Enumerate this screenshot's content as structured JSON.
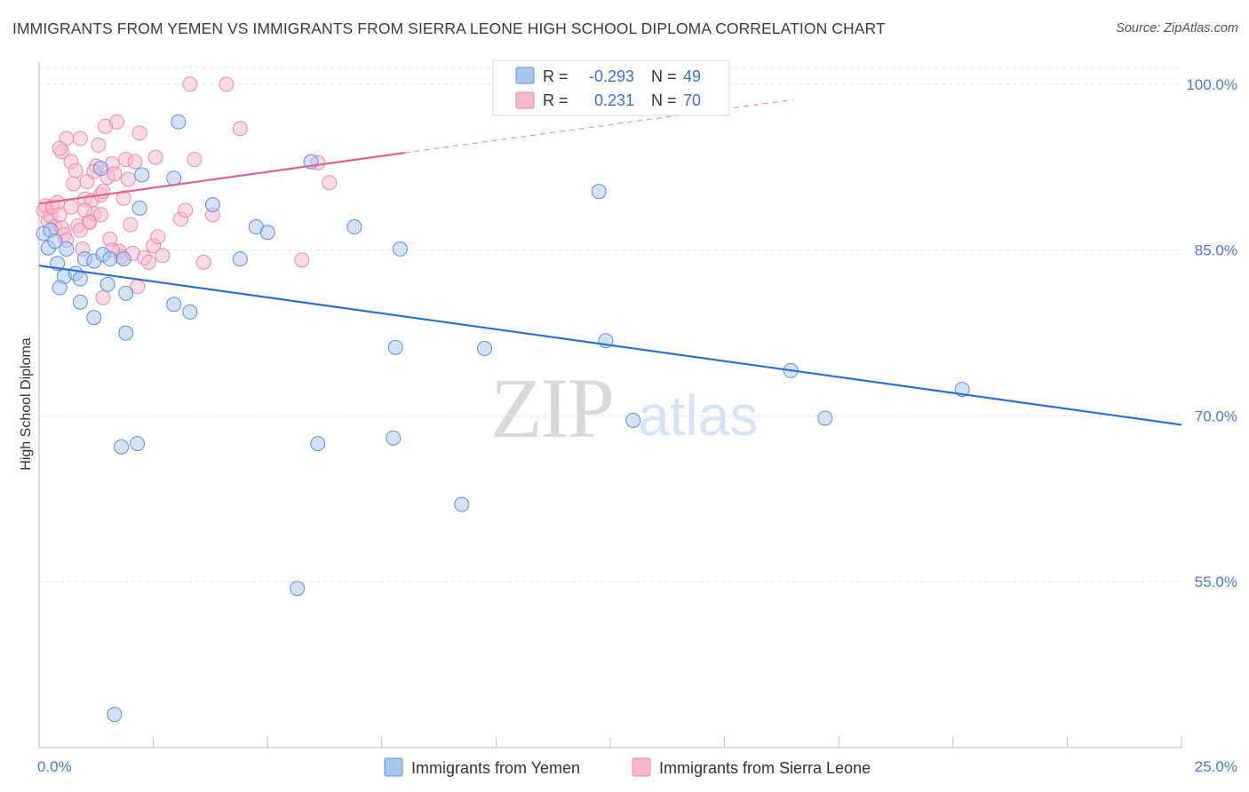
{
  "title": "IMMIGRANTS FROM YEMEN VS IMMIGRANTS FROM SIERRA LEONE HIGH SCHOOL DIPLOMA CORRELATION CHART",
  "source": "Source: ZipAtlas.com",
  "watermark": {
    "zip": "ZIP",
    "atlas": "atlas"
  },
  "colors": {
    "blue_fill": "#a9c6ef",
    "blue_stroke": "#5b8fd8",
    "blue_line": "#2d6fd0",
    "pink_fill": "#f6b8cc",
    "pink_stroke": "#e88aa8",
    "pink_line": "#e0628e"
  },
  "legend": {
    "rows": [
      {
        "r_label": "R =",
        "r_value": "-0.293",
        "n_label": "N =",
        "n_value": "49"
      },
      {
        "r_label": "R =",
        "r_value": "0.231",
        "n_label": "N =",
        "n_value": "70"
      }
    ]
  },
  "chart_data": {
    "type": "scatter",
    "title": "IMMIGRANTS FROM YEMEN VS IMMIGRANTS FROM SIERRA LEONE HIGH SCHOOL DIPLOMA CORRELATION CHART",
    "xlabel": "",
    "ylabel": "High School Diploma",
    "xlim": [
      0,
      25
    ],
    "ylim": [
      40,
      102
    ],
    "x_tick_labels": [
      "0.0%",
      "25.0%"
    ],
    "y_ticks": [
      55,
      70,
      85,
      100
    ],
    "y_tick_labels": [
      "55.0%",
      "70.0%",
      "85.0%",
      "100.0%"
    ],
    "grid": true,
    "series": [
      {
        "name": "Immigrants from Yemen",
        "color": "blue",
        "trend": {
          "x0": 0,
          "y0": 83.6,
          "x1": 25,
          "y1": 69.2
        },
        "points": [
          [
            0.1,
            86.5
          ],
          [
            0.25,
            86.8
          ],
          [
            0.2,
            85.2
          ],
          [
            0.35,
            85.8
          ],
          [
            0.6,
            85.1
          ],
          [
            0.4,
            83.8
          ],
          [
            0.55,
            82.6
          ],
          [
            0.8,
            82.9
          ],
          [
            1.0,
            84.2
          ],
          [
            1.2,
            84.0
          ],
          [
            0.45,
            81.6
          ],
          [
            0.9,
            82.4
          ],
          [
            1.4,
            84.6
          ],
          [
            1.55,
            84.2
          ],
          [
            1.85,
            84.2
          ],
          [
            1.35,
            92.4
          ],
          [
            0.9,
            80.3
          ],
          [
            1.2,
            78.9
          ],
          [
            1.5,
            81.9
          ],
          [
            1.9,
            81.1
          ],
          [
            1.9,
            77.5
          ],
          [
            2.2,
            88.8
          ],
          [
            2.25,
            91.8
          ],
          [
            2.95,
            91.5
          ],
          [
            3.05,
            96.6
          ],
          [
            2.95,
            80.1
          ],
          [
            3.3,
            79.4
          ],
          [
            3.8,
            89.1
          ],
          [
            4.4,
            84.2
          ],
          [
            4.75,
            87.1
          ],
          [
            5.0,
            86.6
          ],
          [
            5.95,
            93.0
          ],
          [
            6.9,
            87.1
          ],
          [
            7.9,
            85.1
          ],
          [
            7.8,
            76.2
          ],
          [
            9.75,
            76.1
          ],
          [
            12.25,
            90.3
          ],
          [
            12.4,
            76.8
          ],
          [
            16.45,
            74.1
          ],
          [
            20.2,
            72.4
          ],
          [
            13.0,
            69.6
          ],
          [
            17.2,
            69.8
          ],
          [
            1.8,
            67.2
          ],
          [
            2.15,
            67.5
          ],
          [
            6.1,
            67.5
          ],
          [
            7.75,
            68.0
          ],
          [
            9.25,
            62.0
          ],
          [
            5.65,
            54.4
          ],
          [
            1.65,
            43.0
          ]
        ]
      },
      {
        "name": "Immigrants from Sierra Leone",
        "color": "pink",
        "trend": {
          "x0": 0,
          "y0": 89.2,
          "x1": 8.0,
          "y1": 93.8,
          "dash_x1": 16.5,
          "dash_y1": 98.6
        },
        "points": [
          [
            0.1,
            88.6
          ],
          [
            0.15,
            89.0
          ],
          [
            0.2,
            87.6
          ],
          [
            0.25,
            88.1
          ],
          [
            0.3,
            88.9
          ],
          [
            0.35,
            87.1
          ],
          [
            0.4,
            89.3
          ],
          [
            0.45,
            88.2
          ],
          [
            0.5,
            87.0
          ],
          [
            0.55,
            86.4
          ],
          [
            0.6,
            85.9
          ],
          [
            0.7,
            88.9
          ],
          [
            0.75,
            91.0
          ],
          [
            0.85,
            87.2
          ],
          [
            0.9,
            86.8
          ],
          [
            0.95,
            85.1
          ],
          [
            1.0,
            89.6
          ],
          [
            1.05,
            91.2
          ],
          [
            1.1,
            87.6
          ],
          [
            1.15,
            89.5
          ],
          [
            1.2,
            88.3
          ],
          [
            1.25,
            92.6
          ],
          [
            1.3,
            94.5
          ],
          [
            1.35,
            90.0
          ],
          [
            1.4,
            90.3
          ],
          [
            1.45,
            96.2
          ],
          [
            1.5,
            91.6
          ],
          [
            1.55,
            86.0
          ],
          [
            1.6,
            92.8
          ],
          [
            1.65,
            91.9
          ],
          [
            1.7,
            96.6
          ],
          [
            1.75,
            84.9
          ],
          [
            1.8,
            84.4
          ],
          [
            1.85,
            89.7
          ],
          [
            1.9,
            93.2
          ],
          [
            2.0,
            87.3
          ],
          [
            2.05,
            84.7
          ],
          [
            2.1,
            93.0
          ],
          [
            2.2,
            95.6
          ],
          [
            2.3,
            84.3
          ],
          [
            2.4,
            83.9
          ],
          [
            2.5,
            85.4
          ],
          [
            2.55,
            93.4
          ],
          [
            2.6,
            86.2
          ],
          [
            3.1,
            87.8
          ],
          [
            3.2,
            88.6
          ],
          [
            3.4,
            93.2
          ],
          [
            3.6,
            83.9
          ],
          [
            3.8,
            88.2
          ],
          [
            4.1,
            100.0
          ],
          [
            4.4,
            96.0
          ],
          [
            5.75,
            84.1
          ],
          [
            6.1,
            92.9
          ],
          [
            6.35,
            91.1
          ],
          [
            0.6,
            95.1
          ],
          [
            0.5,
            93.9
          ],
          [
            0.45,
            94.2
          ],
          [
            0.7,
            93.0
          ],
          [
            0.8,
            92.2
          ],
          [
            1.0,
            88.6
          ],
          [
            1.1,
            87.5
          ],
          [
            1.2,
            92.1
          ],
          [
            0.9,
            95.1
          ],
          [
            1.35,
            88.2
          ],
          [
            1.6,
            85.0
          ],
          [
            2.15,
            81.7
          ],
          [
            1.4,
            80.7
          ],
          [
            3.3,
            100.0
          ],
          [
            1.95,
            91.4
          ],
          [
            2.7,
            84.5
          ]
        ]
      }
    ]
  },
  "bottom_legend": {
    "items": [
      {
        "label": "Immigrants from Yemen"
      },
      {
        "label": "Immigrants from Sierra Leone"
      }
    ]
  }
}
